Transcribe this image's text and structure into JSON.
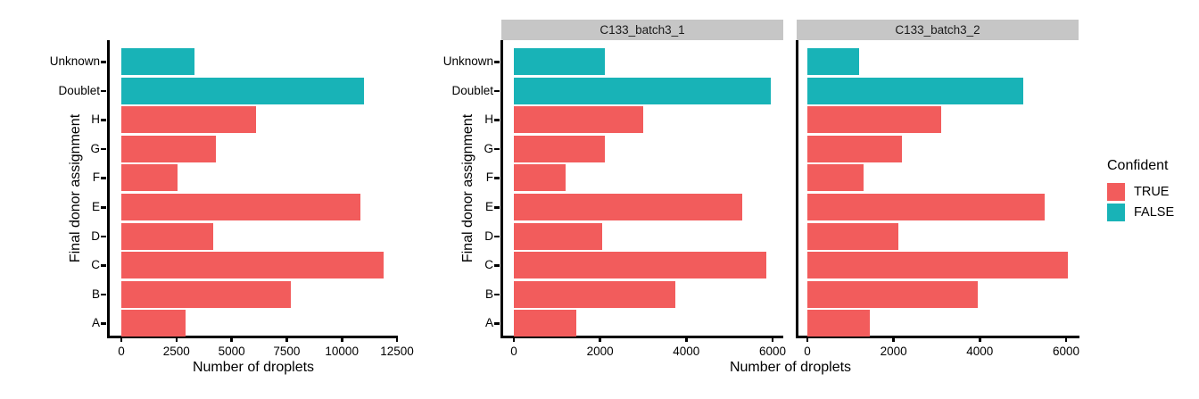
{
  "colors": {
    "confident_true": "#F25C5C",
    "confident_false": "#18B3B7",
    "strip_background": "#C6C6C6",
    "axis": "#000000",
    "text": "#000000",
    "background": "#FFFFFF"
  },
  "legend": {
    "title": "Confident",
    "items": [
      "TRUE",
      "FALSE"
    ]
  },
  "chart_data": {
    "type": "bar",
    "orientation": "horizontal",
    "xlabel": "Number of droplets",
    "ylabel": "Final donor assignment",
    "grid": false,
    "legend_position": "right",
    "categories_top_to_bottom": [
      "Unknown",
      "Doublet",
      "H",
      "G",
      "F",
      "E",
      "D",
      "C",
      "B",
      "A"
    ],
    "category_confident": [
      "FALSE",
      "FALSE",
      "TRUE",
      "TRUE",
      "TRUE",
      "TRUE",
      "TRUE",
      "TRUE",
      "TRUE",
      "TRUE"
    ],
    "panels": [
      {
        "facet_label": null,
        "xticks": [
          0,
          2500,
          5000,
          7500,
          10000,
          12500
        ],
        "xlim": [
          0,
          13000
        ],
        "values": [
          3300,
          11000,
          6100,
          4300,
          2550,
          10850,
          4150,
          11900,
          7700,
          2900
        ]
      },
      {
        "facet_label": "C133_batch3_1",
        "xticks": [
          0,
          2000,
          4000,
          6000
        ],
        "xlim": [
          0,
          6300
        ],
        "values": [
          2100,
          5950,
          3000,
          2100,
          1200,
          5300,
          2050,
          5850,
          3750,
          1450
        ]
      },
      {
        "facet_label": "C133_batch3_2",
        "xticks": [
          0,
          2000,
          4000,
          6000
        ],
        "xlim": [
          0,
          6300
        ],
        "values": [
          1200,
          5000,
          3100,
          2200,
          1300,
          5500,
          2100,
          6050,
          3950,
          1450
        ]
      }
    ]
  }
}
